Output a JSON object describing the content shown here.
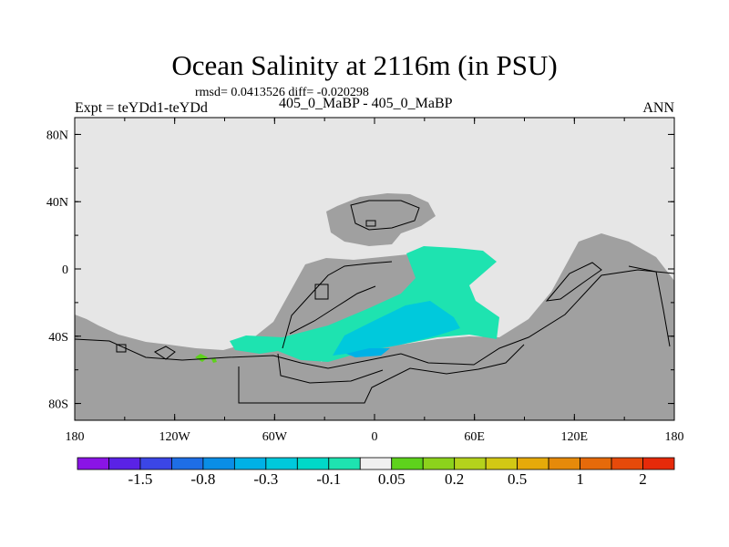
{
  "header": {
    "title": "Ocean Salinity at 2116m (in PSU)",
    "stats": "rmsd= 0.0413526 diff= -0.020298",
    "experiment": "Expt = teYDd1-teYDd",
    "subtitle": "405_0_MaBP - 405_0_MaBP",
    "season": "ANN"
  },
  "map": {
    "x_ticks": [
      "180",
      "120W",
      "60W",
      "0",
      "60E",
      "120E",
      "180"
    ],
    "y_ticks": [
      "80N",
      "40N",
      "0",
      "40S",
      "80S"
    ],
    "lon_range": [
      -180,
      180
    ],
    "lat_range": [
      -90,
      90
    ],
    "colors": {
      "missing": "#e6e6e6",
      "land": "#a0a0a0",
      "coast_line": "#000000",
      "anomaly_teal": "#1ee3b0",
      "anomaly_cyan": "#00c9dc",
      "anomaly_blue": "#00b1e6",
      "anomaly_green": "#5ed21c"
    }
  },
  "colorbar": {
    "colors": [
      "#8a14e6",
      "#5a22e6",
      "#3b46e6",
      "#1e6ee6",
      "#0a8ee6",
      "#00b1e6",
      "#00c9dc",
      "#00d9c8",
      "#1ee3b0",
      "#f0f0f0",
      "#5ed21c",
      "#8cd21c",
      "#b4d21c",
      "#d2c814",
      "#e6aa0a",
      "#e68a0a",
      "#e66a0a",
      "#e64a0a",
      "#e62a0a"
    ],
    "labels": [
      "-1.5",
      "-0.8",
      "-0.3",
      "-0.1",
      "0.05",
      "0.2",
      "0.5",
      "1",
      "2"
    ]
  }
}
